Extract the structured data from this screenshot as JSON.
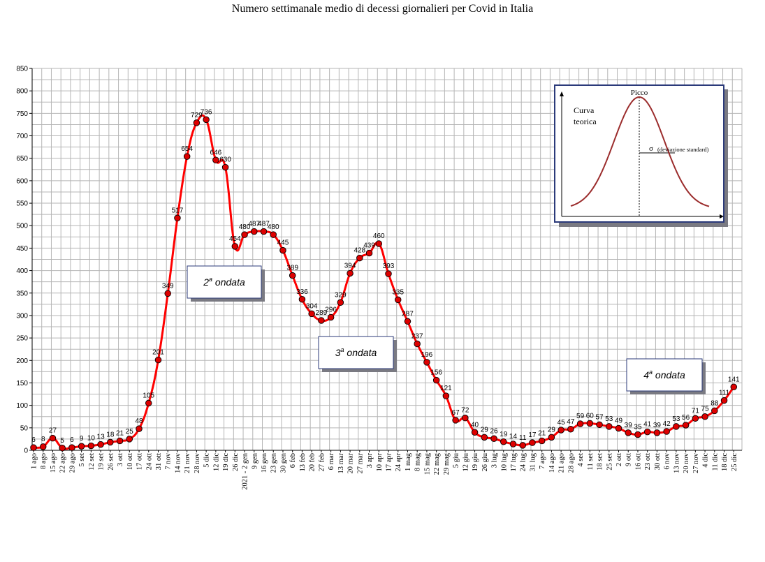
{
  "chart_data": {
    "type": "line",
    "title": "Numero settimanale medio di decessi giornalieri per Covid in Italia",
    "categories": [
      "1 ago",
      "8 ago",
      "15 ago",
      "22 ago",
      "29 ago",
      "5 set",
      "12 set",
      "19 set",
      "26 set",
      "3 ott",
      "10 ott",
      "17 ott",
      "24 ott",
      "31 ott",
      "7 nov",
      "14 nov",
      "21 nov",
      "28 nov",
      "5 dic",
      "12 dic",
      "19 dic",
      "26 dic",
      "2021 - 2 gen",
      "9 gen",
      "16 gen",
      "23 gen",
      "30 gen",
      "6 feb",
      "13 feb",
      "20 feb",
      "27 feb",
      "6 mar",
      "13 mar",
      "20 mar",
      "27 mar",
      "3 apr",
      "10 apr",
      "17 apr",
      "24 apr",
      "1 mag",
      "8 mag",
      "15 mag",
      "22 mag",
      "29 mag",
      "5 giu",
      "12 giu",
      "19 giu",
      "26 giu",
      "3 lug",
      "10 lug",
      "17 lug",
      "24 lug",
      "31 lug",
      "7 ago",
      "14 ago",
      "21 ago",
      "28 ago",
      "4 set",
      "11 set",
      "18 set",
      "25 set",
      "2 ott",
      "9 ott",
      "16 ott",
      "23 ott",
      "30 ott",
      "6 nov",
      "13 nov",
      "20 nov",
      "27 nov",
      "4 dic",
      "11 dic",
      "18 dic",
      "25 dic"
    ],
    "values": [
      6,
      8,
      27,
      5,
      6,
      9,
      10,
      13,
      18,
      21,
      25,
      48,
      105,
      201,
      349,
      517,
      654,
      729,
      736,
      646,
      630,
      454,
      480,
      487,
      487,
      480,
      445,
      389,
      336,
      304,
      289,
      296,
      329,
      394,
      428,
      439,
      460,
      393,
      335,
      287,
      237,
      196,
      156,
      121,
      67,
      72,
      40,
      29,
      26,
      19,
      14,
      11,
      17,
      21,
      29,
      45,
      47,
      59,
      60,
      57,
      53,
      49,
      39,
      35,
      41,
      39,
      42,
      53,
      56,
      71,
      75,
      88,
      111,
      141
    ],
    "labels": [
      "6",
      "8",
      "27",
      "5",
      "6",
      "9",
      "10",
      "13",
      "18",
      "21",
      "25",
      "48",
      "105",
      "201",
      "349",
      "517",
      "654",
      "729",
      "736",
      "646",
      "630",
      "454",
      "480",
      "487",
      "487",
      "480",
      "445",
      "389",
      "336",
      "304",
      "289",
      "296",
      "329",
      "394",
      "428",
      "439",
      "460",
      "393",
      "335",
      "287",
      "237",
      "196",
      "156",
      "121",
      "67",
      "72",
      "40",
      "29",
      "26",
      "19",
      "14",
      "11",
      "17",
      "21",
      "29",
      "45",
      "47",
      "59",
      "60",
      "57",
      "53",
      "49",
      "39",
      "35",
      "41",
      "39",
      "42",
      "53",
      "56",
      "71",
      "75",
      "88",
      "111",
      "141"
    ],
    "yticks": [
      "0",
      "50",
      "100",
      "150",
      "200",
      "250",
      "300",
      "350",
      "400",
      "450",
      "500",
      "550",
      "600",
      "650",
      "700",
      "750",
      "800",
      "850"
    ],
    "ylim": [
      0,
      850
    ],
    "grid": true,
    "line_color": "#ff0000",
    "marker_color": "#dd0000",
    "annotations": [
      {
        "prefix": "2",
        "sup": "a",
        "suffix": " ondata"
      },
      {
        "prefix": "3",
        "sup": "a",
        "suffix": " ondata"
      },
      {
        "prefix": "4",
        "sup": "a",
        "suffix": " ondata"
      }
    ],
    "inset": {
      "peak_label": "Picco",
      "curve_label_1": "Curva",
      "curve_label_2": "teorica",
      "sigma_symbol": "σ",
      "sigma_label": "(deviazione standard)",
      "curve_color": "#9b2c2c"
    }
  }
}
